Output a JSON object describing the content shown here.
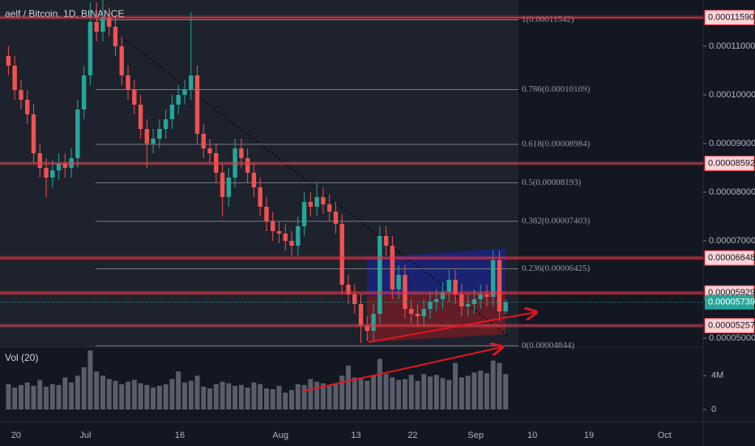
{
  "chart_data": {
    "type": "candlestick",
    "title": "aelf / Bitcoin, 1D, BINANCE",
    "up_color": "#26a69a",
    "down_color": "#ef5350",
    "categories": [
      null,
      null,
      "20",
      null,
      null,
      null,
      null,
      null,
      null,
      null,
      null,
      null,
      null,
      "Jul",
      null,
      null,
      null,
      null,
      null,
      null,
      null,
      null,
      null,
      null,
      null,
      null,
      null,
      null,
      "16",
      null,
      null,
      null,
      null,
      null,
      null,
      null,
      null,
      null,
      null,
      null,
      null,
      null,
      null,
      null,
      "Aug",
      null,
      null,
      null,
      null,
      null,
      null,
      null,
      null,
      null,
      null,
      null,
      "13",
      null,
      null,
      null,
      null,
      null,
      null,
      null,
      null,
      "22",
      null,
      null,
      null,
      null,
      null,
      null,
      null,
      null,
      null,
      "Sep",
      null,
      null,
      null,
      null,
      null,
      null,
      null,
      null,
      "10",
      null,
      null,
      null,
      null,
      null,
      null,
      null,
      null,
      "19",
      null,
      null,
      null,
      null,
      null,
      null,
      null,
      null,
      null,
      null,
      null,
      "Oct"
    ],
    "open": [
      0.000108,
      0.000106,
      0.000101,
      9.9e-05,
      9.6e-05,
      8.8e-05,
      8.5e-05,
      8.3e-05,
      8.45e-05,
      8.6e-05,
      8.5e-05,
      8.7e-05,
      9.7e-05,
      0.000104,
      0.000115,
      0.000113,
      0.000116,
      0.000114,
      0.00011,
      0.000104,
      0.000101,
      9.8e-05,
      9.3e-05,
      9e-05,
      9.1e-05,
      9.3e-05,
      9.5e-05,
      9.8e-05,
      0.0001,
      0.000101,
      0.000104,
      9.2e-05,
      8.9e-05,
      8.8e-05,
      8.4e-05,
      7.9e-05,
      8.3e-05,
      8.9e-05,
      8.7e-05,
      8.4e-05,
      8.1e-05,
      7.7e-05,
      7.4e-05,
      7.2e-05,
      7.15e-05,
      7e-05,
      6.9e-05,
      7.3e-05,
      7.8e-05,
      7.7e-05,
      7.9e-05,
      7.75e-05,
      7.6e-05,
      7.35e-05,
      6.1e-05,
      5.9e-05,
      5.7e-05,
      5.25e-05,
      5.15e-05,
      5.5e-05,
      7.1e-05,
      6.9e-05,
      6e-05,
      6.3e-05,
      5.6e-05,
      5.5e-05,
      5.45e-05,
      5.6e-05,
      5.75e-05,
      5.8e-05,
      5.95e-05,
      6.2e-05,
      5.9e-05,
      5.65e-05,
      5.7e-05,
      5.8e-05,
      5.9e-05,
      5.85e-05,
      6.6e-05,
      5.55e-05,
      null,
      null,
      null,
      null,
      null,
      null,
      null,
      null,
      null,
      null,
      null,
      null,
      null,
      null,
      null,
      null,
      null,
      null,
      null,
      null,
      null,
      null,
      null,
      null,
      null,
      null
    ],
    "high": [
      0.00011,
      0.000108,
      0.000103,
      0.000101,
      9.8e-05,
      9e-05,
      8.7e-05,
      8.65e-05,
      8.8e-05,
      8.8e-05,
      8.9e-05,
      9.9e-05,
      0.000106,
      0.000119,
      0.000119,
      0.0001195,
      0.000118,
      0.000116,
      0.000112,
      0.000106,
      0.000103,
      0.0001,
      9.5e-05,
      9.3e-05,
      9.5e-05,
      9.7e-05,
      0.0001,
      0.000102,
      0.000103,
      0.000117,
      0.000106,
      9.4e-05,
      9.1e-05,
      9e-05,
      8.6e-05,
      8.5e-05,
      9.1e-05,
      9.1e-05,
      8.9e-05,
      8.6e-05,
      8.3e-05,
      7.9e-05,
      7.6e-05,
      7.4e-05,
      7.35e-05,
      7.2e-05,
      7.5e-05,
      8e-05,
      8e-05,
      8.2e-05,
      8.1e-05,
      7.95e-05,
      7.8e-05,
      7.55e-05,
      6.3e-05,
      6.1e-05,
      5.9e-05,
      5.45e-05,
      5.7e-05,
      7.3e-05,
      7.3e-05,
      7.1e-05,
      6.5e-05,
      6.5e-05,
      5.8e-05,
      5.7e-05,
      5.8e-05,
      5.95e-05,
      6e-05,
      6.15e-05,
      6.4e-05,
      6.4e-05,
      6.1e-05,
      5.9e-05,
      6e-05,
      6.1e-05,
      6.1e-05,
      6.8e-05,
      6.8e-05,
      5.8e-05,
      null,
      null,
      null,
      null,
      null,
      null,
      null,
      null,
      null,
      null,
      null,
      null,
      null,
      null,
      null,
      null,
      null,
      null,
      null,
      null,
      null,
      null,
      null,
      null,
      null,
      null
    ],
    "low": [
      0.000104,
      9.9e-05,
      9.7e-05,
      9.4e-05,
      8.6e-05,
      8.3e-05,
      7.9e-05,
      8.1e-05,
      8.25e-05,
      8.3e-05,
      8.3e-05,
      8.5e-05,
      9.5e-05,
      0.000102,
      0.000111,
      0.000111,
      0.000112,
      0.000108,
      0.000102,
      9.9e-05,
      9.6e-05,
      9.1e-05,
      8.5e-05,
      8.8e-05,
      8.9e-05,
      9.1e-05,
      9.3e-05,
      9.6e-05,
      9.8e-05,
      9.9e-05,
      9e-05,
      8.7e-05,
      8.6e-05,
      8.2e-05,
      7.5e-05,
      7.7e-05,
      8.1e-05,
      8.5e-05,
      8.2e-05,
      7.9e-05,
      7.5e-05,
      7.2e-05,
      7e-05,
      6.95e-05,
      6.8e-05,
      6.7e-05,
      6.7e-05,
      7.1e-05,
      7.5e-05,
      7.5e-05,
      7.55e-05,
      7.4e-05,
      7.15e-05,
      5.9e-05,
      5.7e-05,
      5.5e-05,
      4.9e-05,
      4.95e-05,
      4.95e-05,
      5.3e-05,
      6.7e-05,
      5.8e-05,
      5.8e-05,
      5.4e-05,
      5.3e-05,
      5.25e-05,
      5.25e-05,
      5.4e-05,
      5.55e-05,
      5.6e-05,
      5.75e-05,
      5.7e-05,
      5.45e-05,
      5.45e-05,
      5.5e-05,
      5.6e-05,
      5.65e-05,
      5.65e-05,
      5.35e-05,
      5.5e-05,
      null,
      null,
      null,
      null,
      null,
      null,
      null,
      null,
      null,
      null,
      null,
      null,
      null,
      null,
      null,
      null,
      null,
      null,
      null,
      null,
      null,
      null,
      null,
      null,
      null,
      null
    ],
    "close": [
      0.000106,
      0.000101,
      9.9e-05,
      9.6e-05,
      8.8e-05,
      8.5e-05,
      8.3e-05,
      8.45e-05,
      8.6e-05,
      8.5e-05,
      8.7e-05,
      9.7e-05,
      0.000104,
      0.000115,
      0.000113,
      0.000116,
      0.000114,
      0.00011,
      0.000104,
      0.000101,
      9.8e-05,
      9.3e-05,
      9e-05,
      9.1e-05,
      9.3e-05,
      9.5e-05,
      9.8e-05,
      0.0001,
      0.000101,
      0.000104,
      9.2e-05,
      8.9e-05,
      8.8e-05,
      8.4e-05,
      7.9e-05,
      8.3e-05,
      8.9e-05,
      8.7e-05,
      8.4e-05,
      8.1e-05,
      7.7e-05,
      7.4e-05,
      7.2e-05,
      7.15e-05,
      7e-05,
      6.9e-05,
      7.3e-05,
      7.8e-05,
      7.7e-05,
      7.9e-05,
      7.75e-05,
      7.6e-05,
      7.35e-05,
      6.1e-05,
      5.9e-05,
      5.7e-05,
      5.25e-05,
      5.15e-05,
      5.5e-05,
      7.1e-05,
      6.9e-05,
      6e-05,
      6.3e-05,
      5.6e-05,
      5.5e-05,
      5.45e-05,
      5.6e-05,
      5.75e-05,
      5.8e-05,
      5.95e-05,
      6.2e-05,
      5.9e-05,
      5.65e-05,
      5.7e-05,
      5.8e-05,
      5.9e-05,
      5.85e-05,
      6.6e-05,
      5.55e-05,
      5.739e-05,
      null,
      null,
      null,
      null,
      null,
      null,
      null,
      null,
      null,
      null,
      null,
      null,
      null,
      null,
      null,
      null,
      null,
      null,
      null,
      null,
      null,
      null,
      null,
      null,
      null,
      null
    ],
    "ylim": [
      4.83e-05,
      0.0001195
    ],
    "yticks": [
      {
        "value": 5e-05,
        "label": "0.00005000"
      },
      {
        "value": 7e-05,
        "label": "0.00007000"
      },
      {
        "value": 8e-05,
        "label": "0.00008000"
      },
      {
        "value": 9e-05,
        "label": "0.00009000"
      },
      {
        "value": 0.0001,
        "label": "0.00010000"
      },
      {
        "value": 0.00011,
        "label": "0.00011000"
      }
    ],
    "grid": false,
    "line_color": "#f23645",
    "price_lines": [
      {
        "value": 0.0001159,
        "label": "0.00011590"
      },
      {
        "value": 8.592e-05,
        "label": "0.00008592"
      },
      {
        "value": 6.648e-05,
        "label": "0.00006648"
      },
      {
        "value": 5.929e-05,
        "label": "0.00005929"
      },
      {
        "value": 5.257e-05,
        "label": "0.00005257"
      }
    ],
    "last_price": {
      "value": 5.739e-05,
      "label": "0.00005739",
      "color": "#26a69a"
    },
    "fib_color": "#787b86",
    "fib_levels": [
      {
        "value": 0.00011542,
        "label": "1(0.00011542)"
      },
      {
        "value": 0.00010109,
        "label": "0.786(0.00010109)"
      },
      {
        "value": 8.984e-05,
        "label": "0.618(0.00008984)"
      },
      {
        "value": 8.193e-05,
        "label": "0.5(0.00008193)"
      },
      {
        "value": 7.403e-05,
        "label": "0.382(0.00007403)"
      },
      {
        "value": 6.425e-05,
        "label": "0.236(0.00006425)"
      },
      {
        "value": 4.844e-05,
        "label": "0(0.00004844)"
      }
    ],
    "volume": {
      "label": "Vol (20)",
      "color": "#5a5e6b",
      "values": [
        3000000,
        2600000,
        2900000,
        3200000,
        2800000,
        3500000,
        2700000,
        3000000,
        2900000,
        3800000,
        3200000,
        4000000,
        5000000,
        7000000,
        4500000,
        4000000,
        3600000,
        3400000,
        3000000,
        3300000,
        3500000,
        3100000,
        2900000,
        2600000,
        2800000,
        3000000,
        3600000,
        4500000,
        3200000,
        3400000,
        4000000,
        2700000,
        2500000,
        3000000,
        3300000,
        3100000,
        2800000,
        2900000,
        2600000,
        3200000,
        3000000,
        2500000,
        2400000,
        2800000,
        2000000,
        2300000,
        3000000,
        2900000,
        3600000,
        3300000,
        3100000,
        2900000,
        3000000,
        4000000,
        5200000,
        3800000,
        3600000,
        3400000,
        4000000,
        6000000,
        4200000,
        3800000,
        3500000,
        3600000,
        4100000,
        3400000,
        4200000,
        3900000,
        4100000,
        3700000,
        3500000,
        5500000,
        3800000,
        4000000,
        4400000,
        4600000,
        4300000,
        5800000,
        5500000,
        4200000,
        null,
        null,
        null,
        null,
        null,
        null,
        null,
        null,
        null,
        null,
        null,
        null,
        null,
        null,
        null,
        null,
        null,
        null,
        null,
        null,
        null,
        null,
        null,
        null,
        null,
        null
      ],
      "ylim": [
        0,
        7200000
      ],
      "yticks": [
        {
          "value": 4000000,
          "label": "4M"
        },
        0
      ]
    }
  }
}
